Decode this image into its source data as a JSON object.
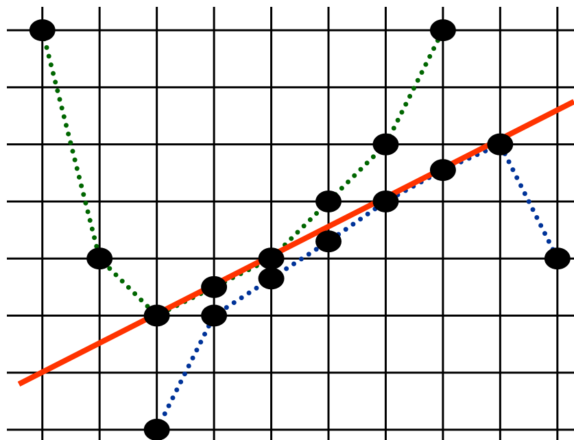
{
  "chart_data": {
    "type": "line",
    "xlim": [
      -0.74,
      9.29
    ],
    "ylim": [
      -0.18,
      7.53
    ],
    "xticks": [
      0,
      1,
      2,
      3,
      4,
      5,
      6,
      7,
      8,
      9
    ],
    "yticks": [
      0,
      1,
      2,
      3,
      4,
      5,
      6,
      7
    ],
    "grid": true,
    "series": [
      {
        "color": "#006600",
        "style": "dotted",
        "markers": true,
        "x": [
          0,
          1,
          2,
          3,
          4,
          5,
          6,
          7
        ],
        "values": [
          7,
          3,
          2,
          2.5,
          3,
          4,
          5,
          7
        ]
      },
      {
        "color": "#003399",
        "style": "dotted",
        "markers": true,
        "x": [
          2,
          3,
          4,
          5,
          6,
          7,
          8,
          9
        ],
        "values": [
          0,
          2,
          2.65,
          3.3,
          4,
          4.55,
          5,
          3
        ]
      },
      {
        "color": "#ff3300",
        "style": "solid",
        "markers": false,
        "x": [
          -0.41,
          9.29
        ],
        "values": [
          0.8,
          5.75
        ]
      }
    ]
  }
}
